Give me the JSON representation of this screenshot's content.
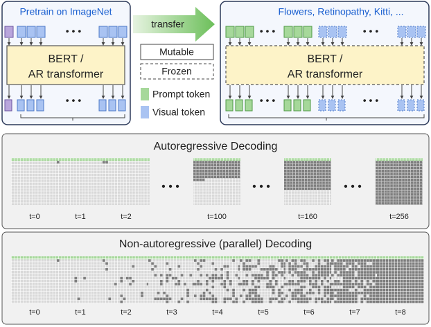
{
  "pretrain": {
    "title": "Pretrain on ImageNet",
    "model": [
      "BERT /",
      "AR transformer"
    ]
  },
  "transfer": "transfer",
  "finetune": {
    "title": "Flowers, Retinopathy, Kitti, ...",
    "model": [
      "BERT /",
      "AR transformer"
    ]
  },
  "legend": {
    "mutable": "Mutable",
    "frozen": "Frozen",
    "prompt": "Prompt token",
    "visual": "Visual token"
  },
  "autoregressive": {
    "title": "Autoregressive Decoding",
    "steps": [
      "t=0",
      "t=1",
      "t=2",
      "t=100",
      "t=160",
      "t=256"
    ]
  },
  "parallel": {
    "title": "Non-autoregressive (parallel) Decoding",
    "steps": [
      "t=0",
      "t=1",
      "t=2",
      "t=3",
      "t=4",
      "t=5",
      "t=6",
      "t=7",
      "t=8"
    ]
  }
}
